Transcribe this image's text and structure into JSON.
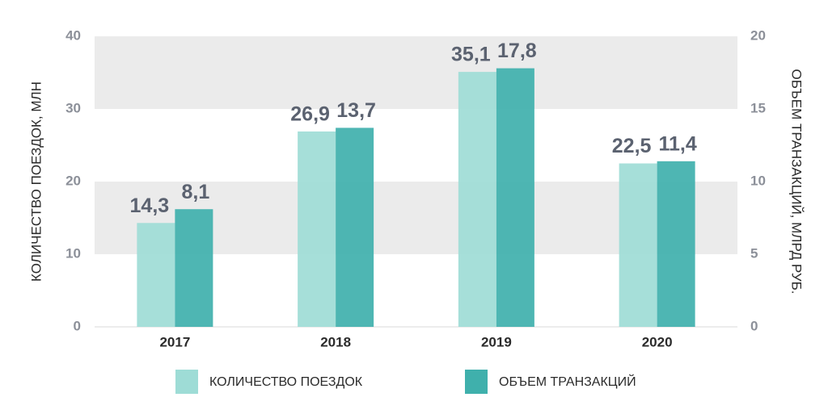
{
  "chart_data": {
    "type": "bar",
    "categories": [
      "2017",
      "2018",
      "2019",
      "2020"
    ],
    "series": [
      {
        "name": "КОЛИЧЕСТВО ПОЕЗДОК",
        "color": "#9edcd6",
        "values": [
          14.3,
          26.9,
          35.1,
          22.5
        ],
        "value_labels": [
          "14,3",
          "26,9",
          "35,1",
          "22,5"
        ]
      },
      {
        "name": "ОБЪЕМ ТРАНЗАКЦИЙ",
        "color": "#3fb0ac",
        "axis": "y2",
        "values": [
          8.1,
          13.7,
          17.8,
          11.4
        ],
        "value_labels": [
          "8,1",
          "13,7",
          "17,8",
          "11,4"
        ]
      }
    ],
    "ylabel": "КОЛИЧЕСТВО ПОЕЗДОК, МЛН",
    "y2label": "ОБЪЕМ ТРАНЗАКЦИЙ, МЛРД РУБ.",
    "ylim": [
      0,
      40
    ],
    "yticks": [
      0,
      10,
      20,
      30,
      40
    ],
    "y2lim": [
      0,
      20
    ],
    "y2ticks": [
      0,
      5,
      10,
      15,
      20
    ],
    "grid_bands": true,
    "band_color": "#ebebeb",
    "legend": "bottom"
  }
}
